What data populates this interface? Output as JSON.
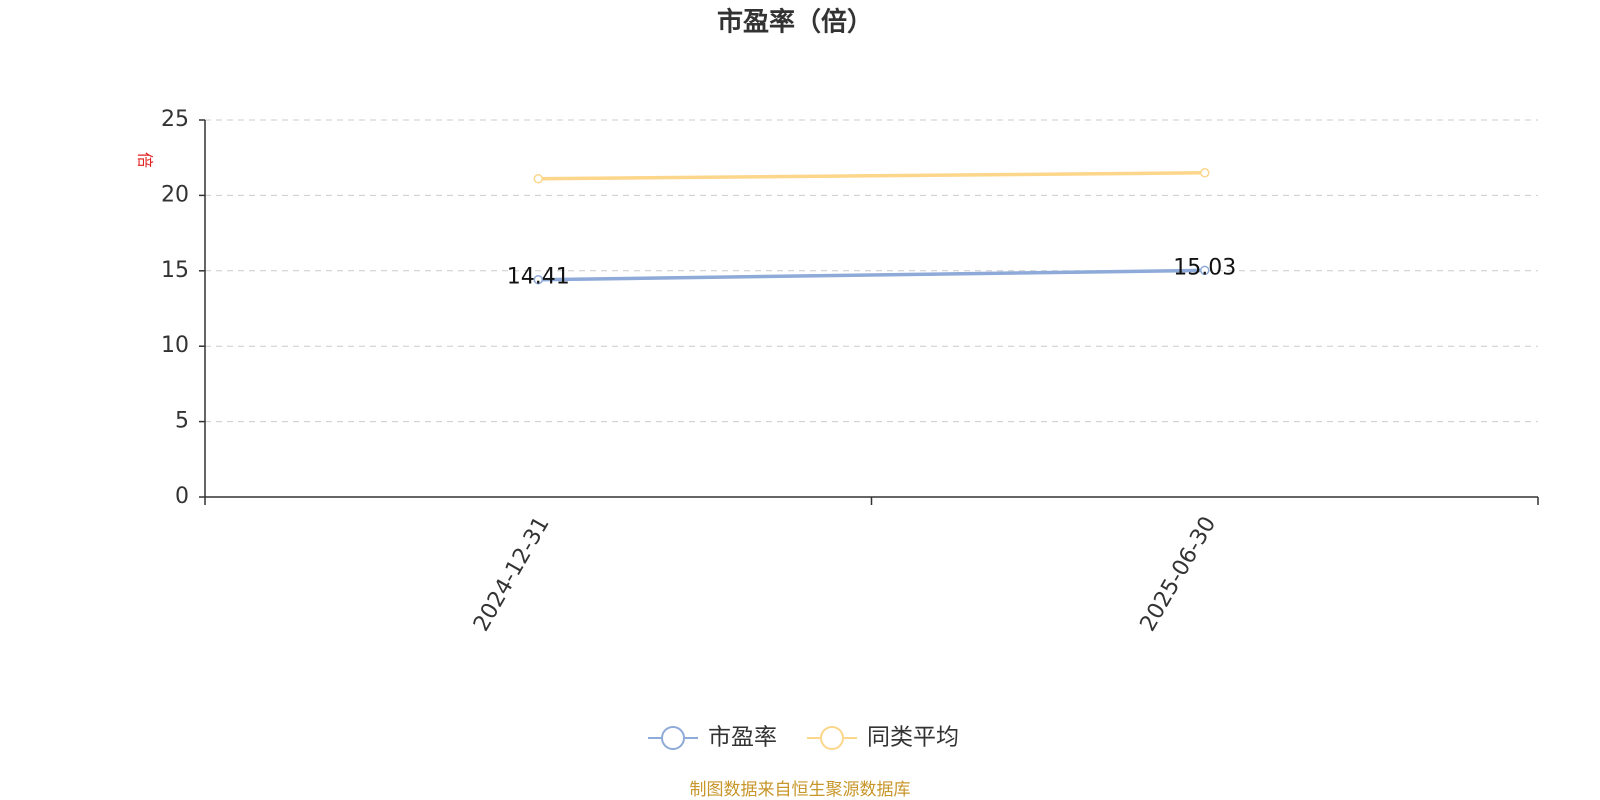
{
  "chart_data": {
    "type": "line",
    "title": "市盈率（倍）",
    "ylabel": "倍",
    "categories": [
      "2024-12-31",
      "2025-06-30"
    ],
    "series": [
      {
        "name": "市盈率",
        "color": "#8eaad8",
        "values": [
          14.41,
          15.03
        ],
        "show_labels": true
      },
      {
        "name": "同类平均",
        "color": "#fcd68a",
        "values": [
          21.1,
          21.5
        ],
        "show_labels": false
      }
    ],
    "ylim": [
      0,
      25
    ],
    "yticks": [
      0,
      5,
      10,
      15,
      20,
      25
    ],
    "grid": true,
    "legend": "bottom",
    "source": "制图数据来自恒生聚源数据库"
  }
}
